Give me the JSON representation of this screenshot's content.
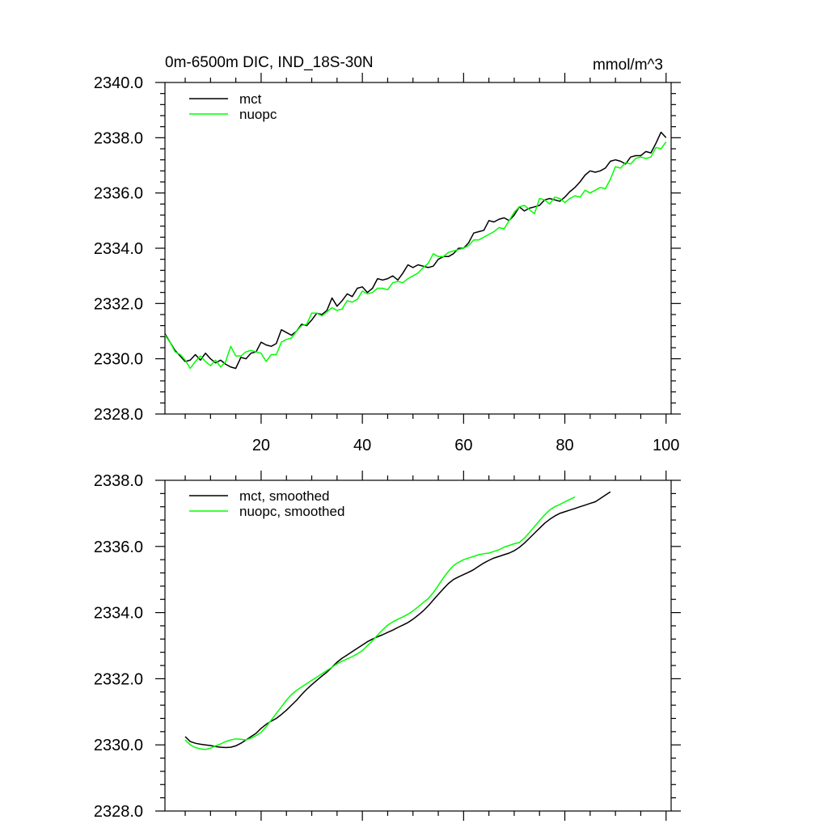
{
  "chart_data": [
    {
      "type": "line",
      "title": "0m-6500m DIC, IND_18S-30N",
      "units": "mmol/m^3",
      "xlim": [
        1,
        101
      ],
      "ylim": [
        2328,
        2340
      ],
      "xticks": [
        20,
        40,
        60,
        80,
        100
      ],
      "xtick_labels": [
        "20",
        "40",
        "60",
        "80",
        "100"
      ],
      "yticks": [
        2328,
        2330,
        2332,
        2334,
        2336,
        2338,
        2340
      ],
      "ytick_labels": [
        "2328.0",
        "2330.0",
        "2332.0",
        "2334.0",
        "2336.0",
        "2338.0",
        "2340.0"
      ],
      "legend_position": "top-left",
      "series": [
        {
          "name": "mct",
          "color": "#000000",
          "x_start": 1,
          "values": [
            2330.9,
            2330.6,
            2330.3,
            2330.1,
            2329.9,
            2329.95,
            2330.15,
            2329.95,
            2330.2,
            2330.0,
            2329.85,
            2329.95,
            2329.8,
            2329.7,
            2329.65,
            2330.05,
            2330.0,
            2330.2,
            2330.25,
            2330.6,
            2330.5,
            2330.45,
            2330.55,
            2331.05,
            2330.95,
            2330.85,
            2331.0,
            2331.25,
            2331.2,
            2331.4,
            2331.65,
            2331.6,
            2331.75,
            2332.2,
            2331.9,
            2332.1,
            2332.35,
            2332.25,
            2332.55,
            2332.6,
            2332.4,
            2332.55,
            2332.9,
            2332.85,
            2332.9,
            2333.0,
            2332.85,
            2333.1,
            2333.4,
            2333.3,
            2333.4,
            2333.35,
            2333.3,
            2333.35,
            2333.6,
            2333.7,
            2333.7,
            2333.8,
            2334.0,
            2334.0,
            2334.2,
            2334.55,
            2334.6,
            2334.65,
            2335.0,
            2334.95,
            2335.05,
            2335.1,
            2335.0,
            2335.2,
            2335.5,
            2335.35,
            2335.45,
            2335.5,
            2335.55,
            2335.75,
            2335.8,
            2335.75,
            2335.7,
            2335.85,
            2336.05,
            2336.2,
            2336.4,
            2336.65,
            2336.8,
            2336.75,
            2336.8,
            2336.9,
            2337.15,
            2337.2,
            2337.15,
            2337.05,
            2337.3,
            2337.35,
            2337.35,
            2337.5,
            2337.45,
            2337.8,
            2338.2,
            2338.0
          ]
        },
        {
          "name": "nuopc",
          "color": "#00ff00",
          "x_start": 1,
          "values": [
            2330.85,
            2330.6,
            2330.25,
            2330.15,
            2329.95,
            2329.65,
            2329.9,
            2330.1,
            2329.9,
            2329.75,
            2329.95,
            2329.7,
            2329.9,
            2330.45,
            2330.1,
            2330.1,
            2330.25,
            2330.3,
            2330.25,
            2330.2,
            2329.9,
            2330.15,
            2330.15,
            2330.6,
            2330.7,
            2330.75,
            2331.0,
            2331.2,
            2331.25,
            2331.65,
            2331.65,
            2331.55,
            2331.7,
            2331.85,
            2331.75,
            2331.8,
            2332.1,
            2332.05,
            2332.15,
            2332.45,
            2332.35,
            2332.4,
            2332.55,
            2332.55,
            2332.5,
            2332.75,
            2332.8,
            2332.75,
            2332.9,
            2333.0,
            2333.1,
            2333.3,
            2333.45,
            2333.8,
            2333.7,
            2333.7,
            2333.85,
            2333.9,
            2333.95,
            2334.0,
            2334.1,
            2334.3,
            2334.3,
            2334.4,
            2334.5,
            2334.6,
            2334.75,
            2334.7,
            2335.0,
            2335.3,
            2335.5,
            2335.55,
            2335.4,
            2335.25,
            2335.8,
            2335.75,
            2335.6,
            2335.85,
            2335.8,
            2335.65,
            2335.8,
            2335.9,
            2335.85,
            2336.1,
            2336.0,
            2336.1,
            2336.2,
            2336.15,
            2336.5,
            2336.95,
            2336.9,
            2337.1,
            2337.05,
            2337.25,
            2337.3,
            2337.25,
            2337.3,
            2337.65,
            2337.6,
            2337.85
          ]
        }
      ]
    },
    {
      "type": "line",
      "xlim": [
        1,
        101
      ],
      "ylim": [
        2328,
        2338
      ],
      "xticks": [
        20,
        40,
        60,
        80,
        100
      ],
      "yticks": [
        2328,
        2330,
        2332,
        2334,
        2336,
        2338
      ],
      "ytick_labels": [
        "2328.0",
        "2330.0",
        "2332.0",
        "2334.0",
        "2336.0",
        "2338.0"
      ],
      "legend_position": "top-left",
      "series": [
        {
          "name": "mct, smoothed",
          "color": "#000000",
          "x_start": 5,
          "values": [
            2330.25,
            2330.1,
            2330.05,
            2330.02,
            2330.0,
            2329.98,
            2329.95,
            2329.93,
            2329.92,
            2329.93,
            2329.97,
            2330.05,
            2330.15,
            2330.25,
            2330.35,
            2330.5,
            2330.62,
            2330.72,
            2330.8,
            2330.92,
            2331.05,
            2331.2,
            2331.35,
            2331.52,
            2331.68,
            2331.82,
            2331.95,
            2332.08,
            2332.2,
            2332.35,
            2332.5,
            2332.62,
            2332.72,
            2332.82,
            2332.92,
            2333.02,
            2333.12,
            2333.2,
            2333.27,
            2333.33,
            2333.4,
            2333.47,
            2333.55,
            2333.62,
            2333.7,
            2333.8,
            2333.92,
            2334.05,
            2334.2,
            2334.38,
            2334.55,
            2334.72,
            2334.88,
            2335.0,
            2335.08,
            2335.15,
            2335.22,
            2335.3,
            2335.4,
            2335.5,
            2335.58,
            2335.65,
            2335.7,
            2335.75,
            2335.8,
            2335.87,
            2335.97,
            2336.1,
            2336.25,
            2336.4,
            2336.55,
            2336.7,
            2336.82,
            2336.92,
            2337.0,
            2337.05,
            2337.1,
            2337.15,
            2337.2,
            2337.25,
            2337.3,
            2337.35,
            2337.45,
            2337.55,
            2337.65
          ]
        },
        {
          "name": "nuopc, smoothed",
          "color": "#00ff00",
          "x_start": 5,
          "values": [
            2330.15,
            2330.0,
            2329.92,
            2329.88,
            2329.86,
            2329.9,
            2329.97,
            2330.03,
            2330.1,
            2330.15,
            2330.18,
            2330.17,
            2330.15,
            2330.2,
            2330.28,
            2330.38,
            2330.55,
            2330.75,
            2330.95,
            2331.15,
            2331.35,
            2331.52,
            2331.65,
            2331.75,
            2331.85,
            2331.95,
            2332.05,
            2332.15,
            2332.25,
            2332.35,
            2332.45,
            2332.53,
            2332.6,
            2332.67,
            2332.75,
            2332.85,
            2333.0,
            2333.15,
            2333.32,
            2333.48,
            2333.62,
            2333.72,
            2333.8,
            2333.87,
            2333.95,
            2334.05,
            2334.17,
            2334.3,
            2334.42,
            2334.6,
            2334.82,
            2335.05,
            2335.25,
            2335.42,
            2335.52,
            2335.6,
            2335.65,
            2335.7,
            2335.75,
            2335.78,
            2335.8,
            2335.85,
            2335.9,
            2335.98,
            2336.03,
            2336.08,
            2336.12,
            2336.25,
            2336.42,
            2336.6,
            2336.78,
            2336.95,
            2337.1,
            2337.2,
            2337.27,
            2337.35,
            2337.42,
            2337.5
          ]
        }
      ]
    }
  ]
}
